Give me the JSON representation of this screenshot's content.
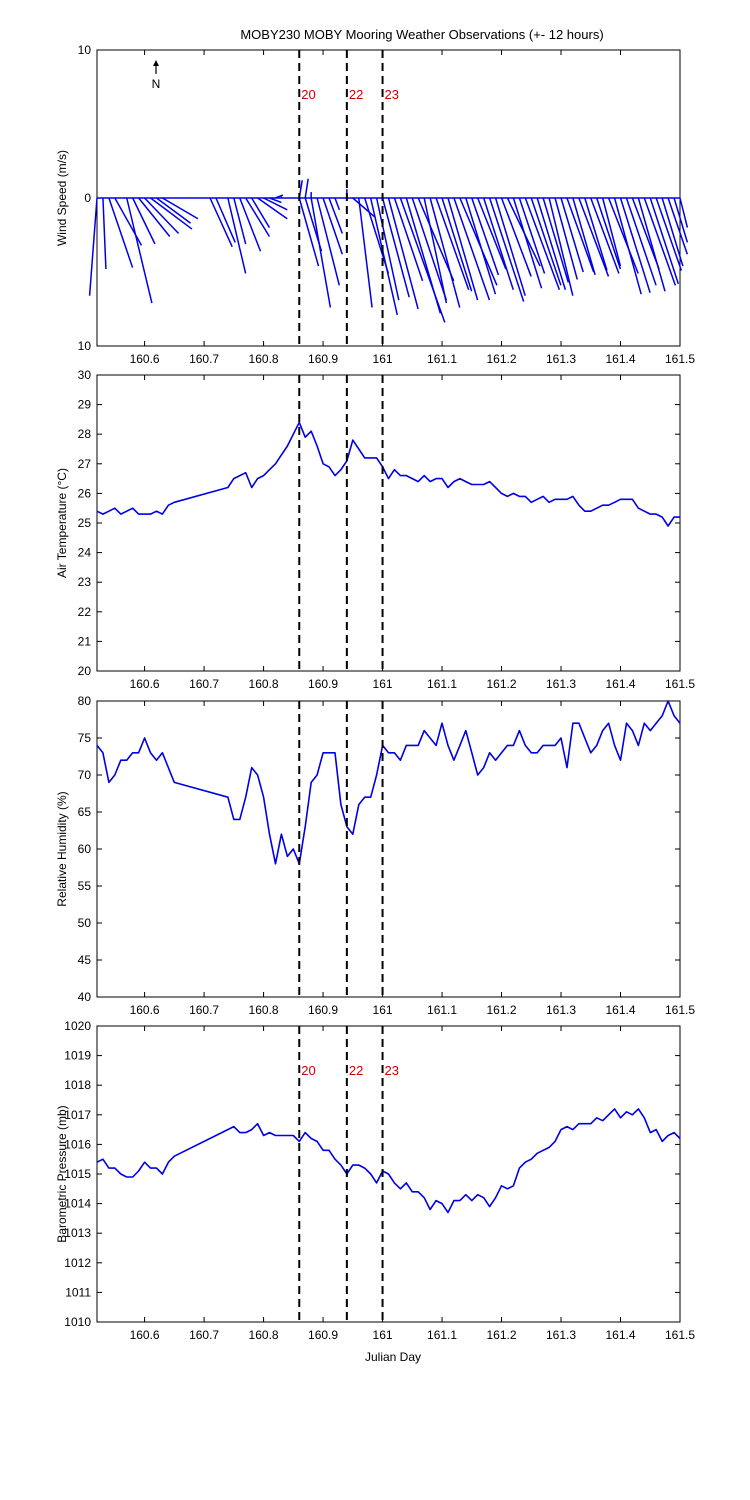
{
  "title": "MOBY230 MOBY Mooring Weather Observations (+- 12 hours)",
  "xlabel": "Julian Day",
  "north_label": "N",
  "colors": {
    "series": "#0000e6",
    "annotation": "#cc0000",
    "vline": "#000000"
  },
  "chart_data": [
    {
      "type": "line",
      "subtype": "wind-stick",
      "ylabel": "Wind Speed (m/s)",
      "xlim": [
        160.52,
        161.5
      ],
      "ylim": [
        -10,
        10
      ],
      "y_tick_labels": [
        "10",
        "0",
        "10"
      ],
      "x_ticks": [
        "160.6",
        "160.7",
        "160.8",
        "160.9",
        "161",
        "161.1",
        "161.2",
        "161.3",
        "161.4",
        "161.5"
      ],
      "vlines": [
        160.86,
        160.94,
        161.0
      ],
      "vline_labels": [
        "20",
        "22",
        "23"
      ],
      "sticks": [
        {
          "x": 160.52,
          "u": -0.5,
          "v": -6.6
        },
        {
          "x": 160.53,
          "u": 0.2,
          "v": -4.8
        },
        {
          "x": 160.54,
          "u": 1.6,
          "v": -4.7
        },
        {
          "x": 160.55,
          "u": 1.8,
          "v": -3.2
        },
        {
          "x": 160.57,
          "u": 1.7,
          "v": -7.1
        },
        {
          "x": 160.58,
          "u": 1.5,
          "v": -3.1
        },
        {
          "x": 160.59,
          "u": 2.1,
          "v": -2.6
        },
        {
          "x": 160.6,
          "u": 2.3,
          "v": -2.4
        },
        {
          "x": 160.61,
          "u": 2.8,
          "v": -2.1
        },
        {
          "x": 160.62,
          "u": 2.3,
          "v": -1.7
        },
        {
          "x": 160.63,
          "u": 2.4,
          "v": -1.4
        },
        {
          "x": 160.71,
          "u": 1.5,
          "v": -3.3
        },
        {
          "x": 160.72,
          "u": 1.3,
          "v": -3.0
        },
        {
          "x": 160.74,
          "u": 1.2,
          "v": -5.1
        },
        {
          "x": 160.75,
          "u": 0.8,
          "v": -3.1
        },
        {
          "x": 160.76,
          "u": 1.4,
          "v": -3.6
        },
        {
          "x": 160.77,
          "u": 1.6,
          "v": -2.6
        },
        {
          "x": 160.78,
          "u": 1.2,
          "v": -2.0
        },
        {
          "x": 160.79,
          "u": 2.0,
          "v": -1.4
        },
        {
          "x": 160.8,
          "u": 1.6,
          "v": -0.8
        },
        {
          "x": 160.81,
          "u": 0.8,
          "v": -0.3
        },
        {
          "x": 160.82,
          "u": 0.5,
          "v": 0.2
        },
        {
          "x": 160.83,
          "u": 0.0,
          "v": 0.1
        },
        {
          "x": 160.86,
          "u": 0.2,
          "v": 1.2
        },
        {
          "x": 160.86,
          "u": 1.3,
          "v": -4.6
        },
        {
          "x": 160.87,
          "u": 1.1,
          "v": -3.6
        },
        {
          "x": 160.87,
          "u": 0.2,
          "v": 1.3
        },
        {
          "x": 160.88,
          "u": 0.0,
          "v": 0.4
        },
        {
          "x": 160.88,
          "u": 1.3,
          "v": -7.4
        },
        {
          "x": 160.89,
          "u": 1.5,
          "v": -5.9
        },
        {
          "x": 160.9,
          "u": 1.3,
          "v": -3.8
        },
        {
          "x": 160.91,
          "u": 0.9,
          "v": -2.4
        },
        {
          "x": 160.92,
          "u": 0.3,
          "v": -0.8
        },
        {
          "x": 160.94,
          "u": 0.0,
          "v": 0.6
        },
        {
          "x": 160.95,
          "u": 1.5,
          "v": -1.3
        },
        {
          "x": 160.96,
          "u": 0.9,
          "v": -7.4
        },
        {
          "x": 160.97,
          "u": 1.6,
          "v": -5.1
        },
        {
          "x": 160.98,
          "u": 1.8,
          "v": -7.9
        },
        {
          "x": 160.99,
          "u": 1.5,
          "v": -6.9
        },
        {
          "x": 161.0,
          "u": 1.8,
          "v": -6.7
        },
        {
          "x": 161.01,
          "u": 2.0,
          "v": -7.5
        },
        {
          "x": 161.02,
          "u": 1.9,
          "v": -5.6
        },
        {
          "x": 161.03,
          "u": 3.0,
          "v": -8.4
        },
        {
          "x": 161.04,
          "u": 2.3,
          "v": -7.8
        },
        {
          "x": 161.05,
          "u": 2.3,
          "v": -6.9
        },
        {
          "x": 161.06,
          "u": 2.4,
          "v": -5.6
        },
        {
          "x": 161.07,
          "u": 1.5,
          "v": -7.1
        },
        {
          "x": 161.08,
          "u": 2.0,
          "v": -7.4
        },
        {
          "x": 161.09,
          "u": 2.2,
          "v": -6.2
        },
        {
          "x": 161.1,
          "u": 2.0,
          "v": -6.3
        },
        {
          "x": 161.11,
          "u": 2.0,
          "v": -6.9
        },
        {
          "x": 161.12,
          "u": 2.4,
          "v": -6.9
        },
        {
          "x": 161.13,
          "u": 2.5,
          "v": -5.9
        },
        {
          "x": 161.14,
          "u": 2.0,
          "v": -6.5
        },
        {
          "x": 161.15,
          "u": 1.8,
          "v": -5.2
        },
        {
          "x": 161.16,
          "u": 1.9,
          "v": -4.8
        },
        {
          "x": 161.17,
          "u": 2.0,
          "v": -6.2
        },
        {
          "x": 161.18,
          "u": 2.3,
          "v": -7.0
        },
        {
          "x": 161.19,
          "u": 2.0,
          "v": -6.6
        },
        {
          "x": 161.2,
          "u": 2.0,
          "v": -5.3
        },
        {
          "x": 161.21,
          "u": 2.2,
          "v": -4.6
        },
        {
          "x": 161.22,
          "u": 1.9,
          "v": -6.1
        },
        {
          "x": 161.23,
          "u": 1.7,
          "v": -5.1
        },
        {
          "x": 161.24,
          "u": 2.3,
          "v": -6.2
        },
        {
          "x": 161.25,
          "u": 2.0,
          "v": -5.9
        },
        {
          "x": 161.26,
          "u": 1.9,
          "v": -6.2
        },
        {
          "x": 161.27,
          "u": 1.7,
          "v": -5.7
        },
        {
          "x": 161.28,
          "u": 1.6,
          "v": -6.6
        },
        {
          "x": 161.29,
          "u": 1.5,
          "v": -5.5
        },
        {
          "x": 161.3,
          "u": 1.5,
          "v": -5.0
        },
        {
          "x": 161.31,
          "u": 1.8,
          "v": -5.0
        },
        {
          "x": 161.32,
          "u": 1.5,
          "v": -5.2
        },
        {
          "x": 161.33,
          "u": 2.0,
          "v": -5.3
        },
        {
          "x": 161.34,
          "u": 1.5,
          "v": -4.9
        },
        {
          "x": 161.35,
          "u": 1.9,
          "v": -5.1
        },
        {
          "x": 161.36,
          "u": 1.6,
          "v": -4.8
        },
        {
          "x": 161.37,
          "u": 1.2,
          "v": -4.6
        },
        {
          "x": 161.38,
          "u": 2.0,
          "v": -5.1
        },
        {
          "x": 161.39,
          "u": 1.8,
          "v": -6.5
        },
        {
          "x": 161.4,
          "u": 2.0,
          "v": -6.4
        },
        {
          "x": 161.41,
          "u": 2.0,
          "v": -5.9
        },
        {
          "x": 161.42,
          "u": 1.8,
          "v": -4.8
        },
        {
          "x": 161.43,
          "u": 1.8,
          "v": -6.3
        },
        {
          "x": 161.44,
          "u": 2.1,
          "v": -5.9
        },
        {
          "x": 161.45,
          "u": 1.9,
          "v": -5.8
        },
        {
          "x": 161.46,
          "u": 1.7,
          "v": -4.9
        },
        {
          "x": 161.47,
          "u": 1.4,
          "v": -4.6
        },
        {
          "x": 161.48,
          "u": 1.3,
          "v": -3.8
        },
        {
          "x": 161.49,
          "u": 0.9,
          "v": -3.0
        },
        {
          "x": 161.5,
          "u": 0.5,
          "v": -2.0
        }
      ]
    },
    {
      "type": "line",
      "ylabel": "Air Temperature (°C)",
      "xlim": [
        160.52,
        161.5
      ],
      "ylim": [
        20,
        30
      ],
      "y_ticks": [
        "20",
        "21",
        "22",
        "23",
        "24",
        "25",
        "26",
        "27",
        "28",
        "29",
        "30"
      ],
      "x_ticks": [
        "160.6",
        "160.7",
        "160.8",
        "160.9",
        "161",
        "161.1",
        "161.2",
        "161.3",
        "161.4",
        "161.5"
      ],
      "vlines": [
        160.86,
        160.94,
        161.0
      ],
      "x": [
        160.52,
        160.53,
        160.54,
        160.55,
        160.56,
        160.57,
        160.58,
        160.59,
        160.6,
        160.61,
        160.62,
        160.63,
        160.64,
        160.65,
        160.74,
        160.75,
        160.76,
        160.77,
        160.78,
        160.79,
        160.8,
        160.81,
        160.82,
        160.83,
        160.84,
        160.85,
        160.86,
        160.87,
        160.88,
        160.89,
        160.9,
        160.91,
        160.92,
        160.93,
        160.94,
        160.95,
        160.96,
        160.97,
        160.98,
        160.99,
        161.0,
        161.01,
        161.02,
        161.03,
        161.04,
        161.05,
        161.06,
        161.07,
        161.08,
        161.09,
        161.1,
        161.11,
        161.12,
        161.13,
        161.14,
        161.15,
        161.16,
        161.17,
        161.18,
        161.19,
        161.2,
        161.21,
        161.22,
        161.23,
        161.24,
        161.25,
        161.26,
        161.27,
        161.28,
        161.29,
        161.3,
        161.31,
        161.32,
        161.33,
        161.34,
        161.35,
        161.36,
        161.37,
        161.38,
        161.39,
        161.4,
        161.41,
        161.42,
        161.43,
        161.44,
        161.45,
        161.46,
        161.47,
        161.48,
        161.49,
        161.5
      ],
      "y": [
        25.4,
        25.3,
        25.4,
        25.5,
        25.3,
        25.4,
        25.5,
        25.3,
        25.3,
        25.3,
        25.4,
        25.3,
        25.6,
        25.7,
        26.2,
        26.5,
        26.6,
        26.7,
        26.2,
        26.5,
        26.6,
        26.8,
        27.0,
        27.3,
        27.6,
        28.0,
        28.4,
        27.9,
        28.1,
        27.6,
        27.0,
        26.9,
        26.6,
        26.8,
        27.1,
        27.8,
        27.5,
        27.2,
        27.2,
        27.2,
        26.9,
        26.5,
        26.8,
        26.6,
        26.6,
        26.5,
        26.4,
        26.6,
        26.4,
        26.5,
        26.5,
        26.2,
        26.4,
        26.5,
        26.4,
        26.3,
        26.3,
        26.3,
        26.4,
        26.2,
        26.0,
        25.9,
        26.0,
        25.9,
        25.9,
        25.7,
        25.8,
        25.9,
        25.7,
        25.8,
        25.8,
        25.8,
        25.9,
        25.6,
        25.4,
        25.4,
        25.5,
        25.6,
        25.6,
        25.7,
        25.8,
        25.8,
        25.8,
        25.5,
        25.4,
        25.3,
        25.3,
        25.2,
        24.9,
        25.2,
        25.2
      ]
    },
    {
      "type": "line",
      "ylabel": "Relative Humidity (%)",
      "xlim": [
        160.52,
        161.5
      ],
      "ylim": [
        40,
        80
      ],
      "y_ticks": [
        "40",
        "45",
        "50",
        "55",
        "60",
        "65",
        "70",
        "75",
        "80"
      ],
      "x_ticks": [
        "160.6",
        "160.7",
        "160.8",
        "160.9",
        "161",
        "161.1",
        "161.2",
        "161.3",
        "161.4",
        "161.5"
      ],
      "vlines": [
        160.86,
        160.94,
        161.0
      ],
      "x": [
        160.52,
        160.53,
        160.54,
        160.55,
        160.56,
        160.57,
        160.58,
        160.59,
        160.6,
        160.61,
        160.62,
        160.63,
        160.65,
        160.74,
        160.75,
        160.76,
        160.77,
        160.78,
        160.79,
        160.8,
        160.81,
        160.82,
        160.83,
        160.84,
        160.85,
        160.86,
        160.87,
        160.88,
        160.89,
        160.9,
        160.91,
        160.92,
        160.93,
        160.94,
        160.95,
        160.96,
        160.97,
        160.98,
        160.99,
        161.0,
        161.01,
        161.02,
        161.03,
        161.04,
        161.05,
        161.06,
        161.07,
        161.08,
        161.09,
        161.1,
        161.11,
        161.12,
        161.13,
        161.14,
        161.15,
        161.16,
        161.17,
        161.18,
        161.19,
        161.2,
        161.21,
        161.22,
        161.23,
        161.24,
        161.25,
        161.26,
        161.27,
        161.28,
        161.29,
        161.3,
        161.31,
        161.32,
        161.33,
        161.34,
        161.35,
        161.36,
        161.37,
        161.38,
        161.39,
        161.4,
        161.41,
        161.42,
        161.43,
        161.44,
        161.45,
        161.46,
        161.47,
        161.48,
        161.49,
        161.5
      ],
      "y": [
        74,
        73,
        69,
        70,
        72,
        72,
        73,
        73,
        75,
        73,
        72,
        73,
        69,
        67,
        64,
        64,
        67,
        71,
        70,
        67,
        62,
        58,
        62,
        59,
        60,
        58,
        63,
        69,
        70,
        73,
        73,
        73,
        66,
        63,
        62,
        66,
        67,
        67,
        70,
        74,
        73,
        73,
        72,
        74,
        74,
        74,
        76,
        75,
        74,
        77,
        74,
        72,
        74,
        76,
        73,
        70,
        71,
        73,
        72,
        73,
        74,
        74,
        76,
        74,
        73,
        73,
        74,
        74,
        74,
        75,
        71,
        77,
        77,
        75,
        73,
        74,
        76,
        77,
        74,
        72,
        77,
        76,
        74,
        77,
        76,
        77,
        78,
        80,
        78,
        77
      ]
    },
    {
      "type": "line",
      "ylabel": "Barometric Pressure (mb)",
      "xlim": [
        160.52,
        161.5
      ],
      "ylim": [
        1010,
        1020
      ],
      "y_ticks": [
        "1010",
        "1011",
        "1012",
        "1013",
        "1014",
        "1015",
        "1016",
        "1017",
        "1018",
        "1019",
        "1020"
      ],
      "x_ticks": [
        "160.6",
        "160.7",
        "160.8",
        "160.9",
        "161",
        "161.1",
        "161.2",
        "161.3",
        "161.4",
        "161.5"
      ],
      "vlines": [
        160.86,
        160.94,
        161.0
      ],
      "vline_labels": [
        "20",
        "22",
        "23"
      ],
      "x": [
        160.52,
        160.53,
        160.54,
        160.55,
        160.56,
        160.57,
        160.58,
        160.59,
        160.6,
        160.61,
        160.62,
        160.63,
        160.64,
        160.65,
        160.75,
        160.76,
        160.77,
        160.78,
        160.79,
        160.8,
        160.81,
        160.82,
        160.83,
        160.84,
        160.85,
        160.86,
        160.87,
        160.88,
        160.89,
        160.9,
        160.91,
        160.92,
        160.93,
        160.94,
        160.95,
        160.96,
        160.97,
        160.98,
        160.99,
        161.0,
        161.01,
        161.02,
        161.03,
        161.04,
        161.05,
        161.06,
        161.07,
        161.08,
        161.09,
        161.1,
        161.11,
        161.12,
        161.13,
        161.14,
        161.15,
        161.16,
        161.17,
        161.18,
        161.19,
        161.2,
        161.21,
        161.22,
        161.23,
        161.24,
        161.25,
        161.26,
        161.27,
        161.28,
        161.29,
        161.3,
        161.31,
        161.32,
        161.33,
        161.34,
        161.35,
        161.36,
        161.37,
        161.38,
        161.39,
        161.4,
        161.41,
        161.42,
        161.43,
        161.44,
        161.45,
        161.46,
        161.47,
        161.48,
        161.49,
        161.5
      ],
      "y": [
        1015.4,
        1015.5,
        1015.2,
        1015.2,
        1015.0,
        1014.9,
        1014.9,
        1015.1,
        1015.4,
        1015.2,
        1015.2,
        1015.0,
        1015.4,
        1015.6,
        1016.6,
        1016.4,
        1016.4,
        1016.5,
        1016.7,
        1016.3,
        1016.4,
        1016.3,
        1016.3,
        1016.3,
        1016.3,
        1016.1,
        1016.4,
        1016.2,
        1016.1,
        1015.8,
        1015.8,
        1015.5,
        1015.3,
        1015.0,
        1015.3,
        1015.3,
        1015.2,
        1015.0,
        1014.7,
        1015.1,
        1015.0,
        1014.7,
        1014.5,
        1014.7,
        1014.4,
        1014.4,
        1014.2,
        1013.8,
        1014.1,
        1014.0,
        1013.7,
        1014.1,
        1014.1,
        1014.3,
        1014.1,
        1014.3,
        1014.2,
        1013.9,
        1014.2,
        1014.6,
        1014.5,
        1014.6,
        1015.2,
        1015.4,
        1015.5,
        1015.7,
        1015.8,
        1015.9,
        1016.1,
        1016.5,
        1016.6,
        1016.5,
        1016.7,
        1016.7,
        1016.7,
        1016.9,
        1016.8,
        1017.0,
        1017.2,
        1016.9,
        1017.1,
        1017.0,
        1017.2,
        1016.9,
        1016.4,
        1016.5,
        1016.1,
        1016.3,
        1016.4,
        1016.2
      ]
    }
  ]
}
